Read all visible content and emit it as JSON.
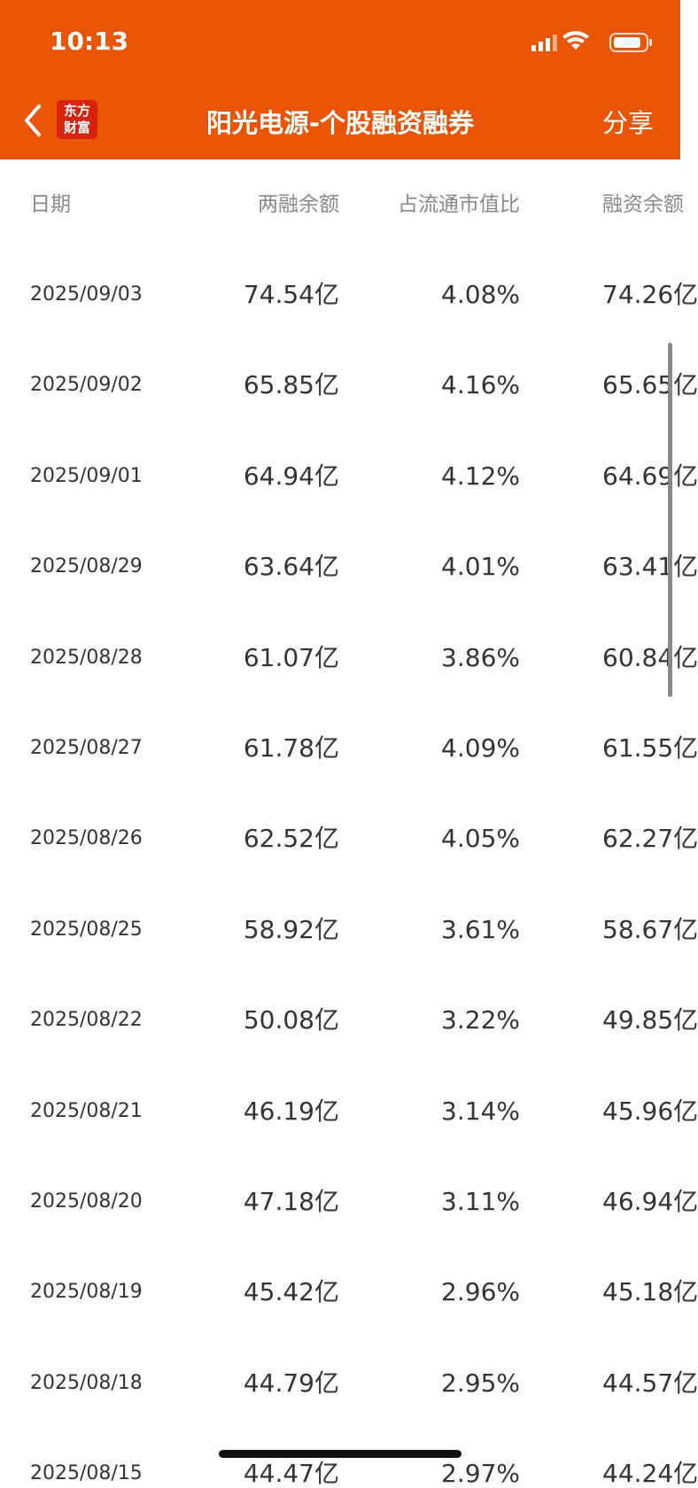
{
  "status": {
    "time": "10:13"
  },
  "nav": {
    "logo": [
      "东方",
      "财富"
    ],
    "title": "阳光电源-个股融资融券",
    "share": "分享"
  },
  "table": {
    "headers": [
      "日期",
      "两融余额",
      "占流通市值比",
      "融资余额"
    ],
    "rows": [
      [
        "2025/09/03",
        "74.54亿",
        "4.08%",
        "74.26亿"
      ],
      [
        "2025/09/02",
        "65.85亿",
        "4.16%",
        "65.65亿"
      ],
      [
        "2025/09/01",
        "64.94亿",
        "4.12%",
        "64.69亿"
      ],
      [
        "2025/08/29",
        "63.64亿",
        "4.01%",
        "63.41亿"
      ],
      [
        "2025/08/28",
        "61.07亿",
        "3.86%",
        "60.84亿"
      ],
      [
        "2025/08/27",
        "61.78亿",
        "4.09%",
        "61.55亿"
      ],
      [
        "2025/08/26",
        "62.52亿",
        "4.05%",
        "62.27亿"
      ],
      [
        "2025/08/25",
        "58.92亿",
        "3.61%",
        "58.67亿"
      ],
      [
        "2025/08/22",
        "50.08亿",
        "3.22%",
        "49.85亿"
      ],
      [
        "2025/08/21",
        "46.19亿",
        "3.14%",
        "45.96亿"
      ],
      [
        "2025/08/20",
        "47.18亿",
        "3.11%",
        "46.94亿"
      ],
      [
        "2025/08/19",
        "45.42亿",
        "2.96%",
        "45.18亿"
      ],
      [
        "2025/08/18",
        "44.79亿",
        "2.95%",
        "44.57亿"
      ],
      [
        "2025/08/15",
        "44.47亿",
        "2.97%",
        "44.24亿"
      ]
    ]
  }
}
